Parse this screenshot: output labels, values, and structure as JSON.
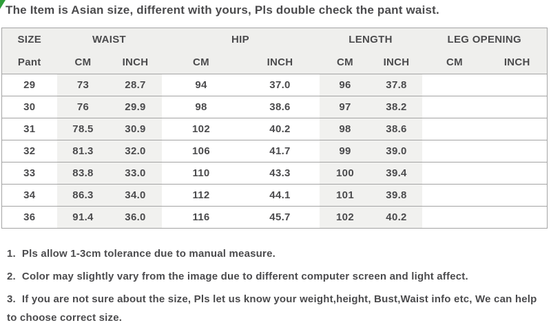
{
  "banner": {
    "title": "The Item is Asian size, different with yours, Pls double check the pant waist."
  },
  "table": {
    "groups": [
      {
        "label": "SIZE",
        "sub": [
          "Pant"
        ]
      },
      {
        "label": "WAIST",
        "sub": [
          "CM",
          "INCH"
        ]
      },
      {
        "label": "HIP",
        "sub": [
          "CM",
          "INCH"
        ]
      },
      {
        "label": "LENGTH",
        "sub": [
          "CM",
          "INCH"
        ]
      },
      {
        "label": "LEG OPENING",
        "sub": [
          "CM",
          "INCH"
        ]
      }
    ],
    "rows": [
      [
        "29",
        "73",
        "28.7",
        "94",
        "37.0",
        "96",
        "37.8",
        "",
        ""
      ],
      [
        "30",
        "76",
        "29.9",
        "98",
        "38.6",
        "97",
        "38.2",
        "",
        ""
      ],
      [
        "31",
        "78.5",
        "30.9",
        "102",
        "40.2",
        "98",
        "38.6",
        "",
        ""
      ],
      [
        "32",
        "81.3",
        "32.0",
        "106",
        "41.7",
        "99",
        "39.0",
        "",
        ""
      ],
      [
        "33",
        "83.8",
        "33.0",
        "110",
        "43.3",
        "100",
        "39.4",
        "",
        ""
      ],
      [
        "34",
        "86.3",
        "34.0",
        "112",
        "44.1",
        "101",
        "39.8",
        "",
        ""
      ],
      [
        "36",
        "91.4",
        "36.0",
        "116",
        "45.7",
        "102",
        "40.2",
        "",
        ""
      ]
    ]
  },
  "notes": [
    {
      "num": "1.",
      "text": "Pls allow 1-3cm tolerance due to manual measure."
    },
    {
      "num": "2.",
      "text": "Color may slightly vary from the image due to different computer screen and light affect."
    },
    {
      "num": "3.",
      "text": "If you are not sure about the size, Pls let us know your weight,height, Bust,Waist info etc, We can help to choose correct size."
    }
  ],
  "colors": {
    "text": "#4b4b4d",
    "header_background": "#efefed",
    "band_background": "#f1f1ef",
    "row_background": "#ffffff",
    "border": "#a3a3a3",
    "corner_green": "#2f9e3a"
  }
}
